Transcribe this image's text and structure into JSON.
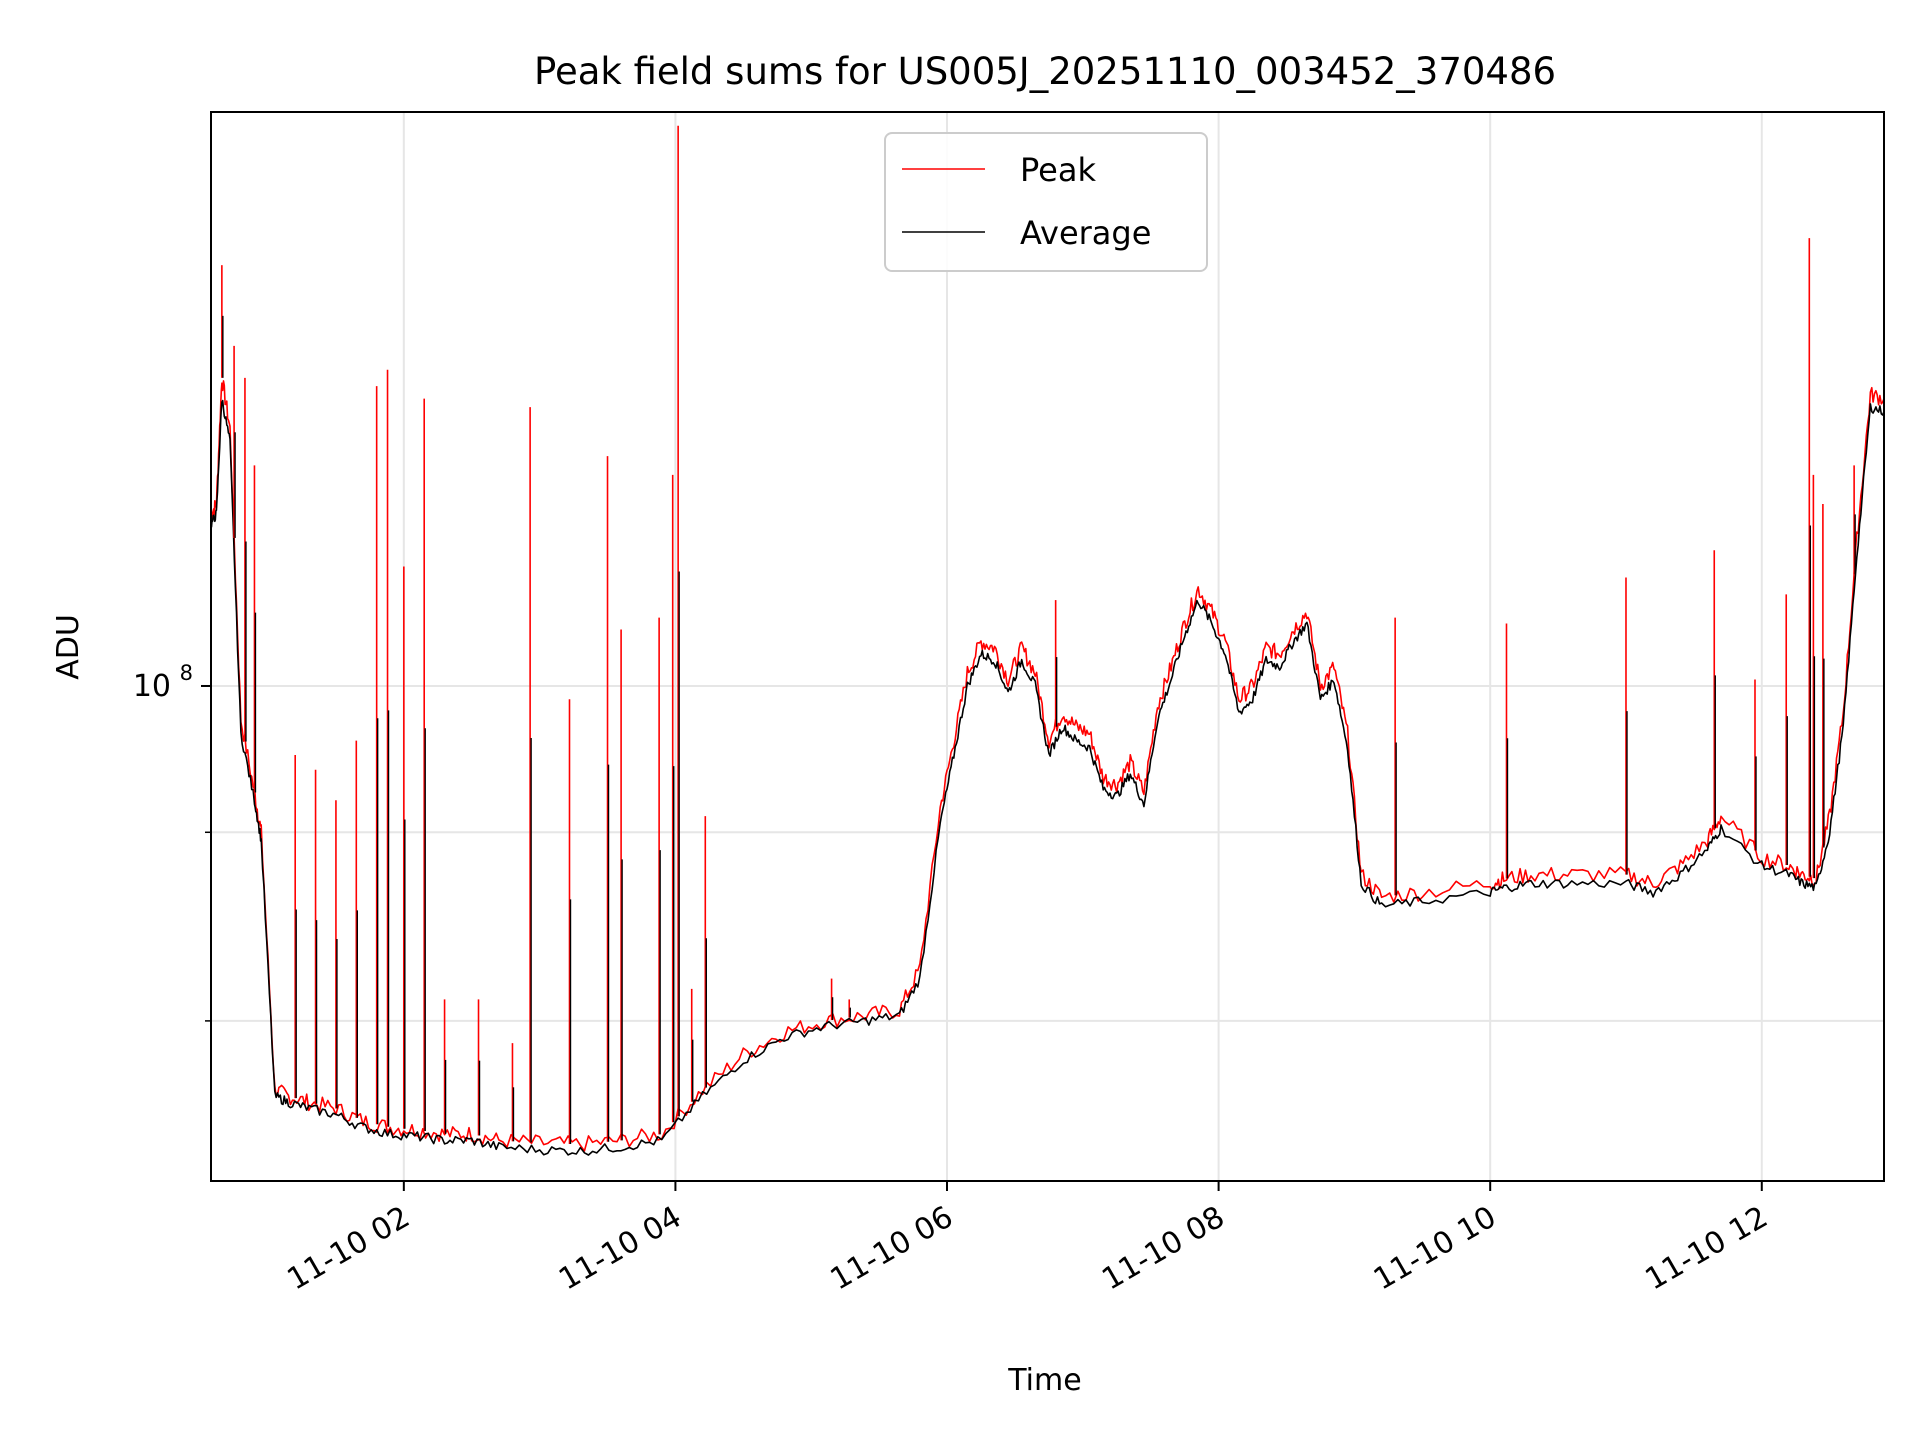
{
  "chart_data": {
    "type": "line",
    "title": "Peak field sums for US005J_20251110_003452_370486",
    "xlabel": "Time",
    "ylabel": "ADU",
    "yscale": "log",
    "ylim": [
      47000000,
      240000000
    ],
    "xlim": [
      0.58,
      12.9
    ],
    "grid": true,
    "legend_position": "top-center",
    "x_ticks": [
      {
        "value": 2,
        "label": "11-10 02"
      },
      {
        "value": 4,
        "label": "11-10 04"
      },
      {
        "value": 6,
        "label": "11-10 06"
      },
      {
        "value": 8,
        "label": "11-10 08"
      },
      {
        "value": 10,
        "label": "11-10 10"
      },
      {
        "value": 12,
        "label": "11-10 12"
      }
    ],
    "y_major_ticks": [
      {
        "value": 100000000,
        "label_base": "10",
        "label_exp": "8"
      }
    ],
    "y_minor_ticks": [
      60000000,
      80000000
    ],
    "x_units": "hours since 2025-11-10 00:00",
    "series": [
      {
        "name": "Peak",
        "color": "#ff0000",
        "x": [
          0.58,
          0.62,
          0.66,
          0.72,
          0.8,
          0.9,
          0.95,
          1.05,
          1.15,
          1.3,
          1.5,
          1.7,
          1.9,
          2.1,
          2.3,
          2.5,
          2.7,
          3.0,
          3.3,
          3.6,
          3.9,
          4.2,
          4.5,
          4.8,
          5.1,
          5.4,
          5.65,
          5.8,
          5.95,
          6.05,
          6.15,
          6.25,
          6.35,
          6.45,
          6.55,
          6.65,
          6.75,
          6.85,
          6.95,
          7.05,
          7.15,
          7.25,
          7.35,
          7.45,
          7.55,
          7.65,
          7.75,
          7.85,
          7.95,
          8.05,
          8.15,
          8.25,
          8.35,
          8.45,
          8.55,
          8.65,
          8.75,
          8.85,
          8.95,
          9.05,
          9.2,
          9.5,
          10.0,
          10.1,
          10.3,
          10.6,
          11.0,
          11.2,
          11.4,
          11.6,
          11.7,
          12.0,
          12.2,
          12.3,
          12.4,
          12.5,
          12.6,
          12.7,
          12.8,
          12.9
        ],
        "y": [
          130000000,
          132000000,
          160000000,
          148000000,
          95000000,
          85000000,
          80000000,
          54000000,
          53500000,
          53000000,
          52500000,
          51500000,
          51000000,
          50800000,
          50500000,
          50500000,
          50000000,
          49800000,
          49700000,
          50000000,
          50500000,
          54000000,
          57000000,
          59000000,
          60000000,
          60500000,
          61000000,
          65000000,
          83000000,
          92000000,
          102000000,
          107000000,
          106000000,
          101000000,
          106000000,
          102000000,
          92000000,
          96000000,
          94000000,
          93000000,
          87000000,
          86000000,
          89000000,
          85000000,
          97000000,
          103000000,
          110000000,
          116000000,
          112000000,
          107000000,
          98000000,
          100000000,
          106000000,
          105000000,
          109000000,
          112000000,
          100000000,
          103000000,
          93000000,
          75000000,
          72500000,
          73000000,
          74000000,
          74500000,
          75000000,
          75000000,
          75000000,
          74000000,
          76000000,
          79000000,
          82000000,
          77000000,
          76000000,
          75000000,
          74500000,
          82000000,
          96000000,
          125000000,
          156000000,
          155000000
        ],
        "spikes": [
          {
            "x": 0.66,
            "y": 190000000
          },
          {
            "x": 0.75,
            "y": 168000000
          },
          {
            "x": 0.83,
            "y": 160000000
          },
          {
            "x": 0.9,
            "y": 140000000
          },
          {
            "x": 1.2,
            "y": 90000000
          },
          {
            "x": 1.35,
            "y": 88000000
          },
          {
            "x": 1.5,
            "y": 84000000
          },
          {
            "x": 1.65,
            "y": 92000000
          },
          {
            "x": 1.8,
            "y": 158000000
          },
          {
            "x": 1.88,
            "y": 162000000
          },
          {
            "x": 2.0,
            "y": 120000000
          },
          {
            "x": 2.15,
            "y": 155000000
          },
          {
            "x": 2.3,
            "y": 62000000
          },
          {
            "x": 2.55,
            "y": 62000000
          },
          {
            "x": 2.8,
            "y": 58000000
          },
          {
            "x": 2.93,
            "y": 153000000
          },
          {
            "x": 3.22,
            "y": 98000000
          },
          {
            "x": 3.5,
            "y": 142000000
          },
          {
            "x": 3.6,
            "y": 109000000
          },
          {
            "x": 3.88,
            "y": 111000000
          },
          {
            "x": 3.98,
            "y": 138000000
          },
          {
            "x": 4.02,
            "y": 235000000
          },
          {
            "x": 4.12,
            "y": 63000000
          },
          {
            "x": 4.22,
            "y": 82000000
          },
          {
            "x": 5.15,
            "y": 64000000
          },
          {
            "x": 5.28,
            "y": 62000000
          },
          {
            "x": 6.8,
            "y": 114000000
          },
          {
            "x": 9.3,
            "y": 111000000
          },
          {
            "x": 10.12,
            "y": 110000000
          },
          {
            "x": 11.0,
            "y": 118000000
          },
          {
            "x": 11.65,
            "y": 123000000
          },
          {
            "x": 11.95,
            "y": 101000000
          },
          {
            "x": 12.18,
            "y": 115000000
          },
          {
            "x": 12.35,
            "y": 198000000
          },
          {
            "x": 12.38,
            "y": 138000000
          },
          {
            "x": 12.45,
            "y": 132000000
          },
          {
            "x": 12.68,
            "y": 140000000
          }
        ]
      },
      {
        "name": "Average",
        "color": "#000000",
        "x": [
          0.58,
          0.62,
          0.66,
          0.72,
          0.8,
          0.9,
          0.95,
          1.05,
          1.15,
          1.3,
          1.5,
          1.7,
          1.9,
          2.1,
          2.3,
          2.5,
          2.7,
          3.0,
          3.3,
          3.6,
          3.9,
          4.2,
          4.5,
          4.8,
          5.1,
          5.4,
          5.65,
          5.8,
          5.95,
          6.05,
          6.15,
          6.25,
          6.35,
          6.45,
          6.55,
          6.65,
          6.75,
          6.85,
          6.95,
          7.05,
          7.15,
          7.25,
          7.35,
          7.45,
          7.55,
          7.65,
          7.75,
          7.85,
          7.95,
          8.05,
          8.15,
          8.25,
          8.35,
          8.45,
          8.55,
          8.65,
          8.75,
          8.85,
          8.95,
          9.05,
          9.2,
          9.5,
          10.0,
          10.1,
          10.3,
          10.6,
          11.0,
          11.2,
          11.4,
          11.6,
          11.7,
          12.0,
          12.2,
          12.3,
          12.4,
          12.5,
          12.6,
          12.7,
          12.8,
          12.9
        ],
        "y": [
          128000000,
          130000000,
          155000000,
          145000000,
          93000000,
          84000000,
          79000000,
          53500000,
          53000000,
          52500000,
          52000000,
          51000000,
          50500000,
          50300000,
          50000000,
          50000000,
          49500000,
          49300000,
          49200000,
          49500000,
          50000000,
          53500000,
          56500000,
          58500000,
          59500000,
          60000000,
          60500000,
          64000000,
          81000000,
          90000000,
          100000000,
          105000000,
          104000000,
          99000000,
          104000000,
          100000000,
          90000000,
          94000000,
          92000000,
          91000000,
          85500000,
          84500000,
          87500000,
          83500000,
          95000000,
          101000000,
          108000000,
          114000000,
          110000000,
          105000000,
          96000000,
          98000000,
          104000000,
          103000000,
          107000000,
          110000000,
          98000000,
          101000000,
          91000000,
          74000000,
          71500000,
          72000000,
          73000000,
          73500000,
          74000000,
          74000000,
          74000000,
          73000000,
          75000000,
          78000000,
          80500000,
          76000000,
          75000000,
          74000000,
          73500000,
          80000000,
          94000000,
          122000000,
          153000000,
          152000000
        ]
      }
    ]
  }
}
